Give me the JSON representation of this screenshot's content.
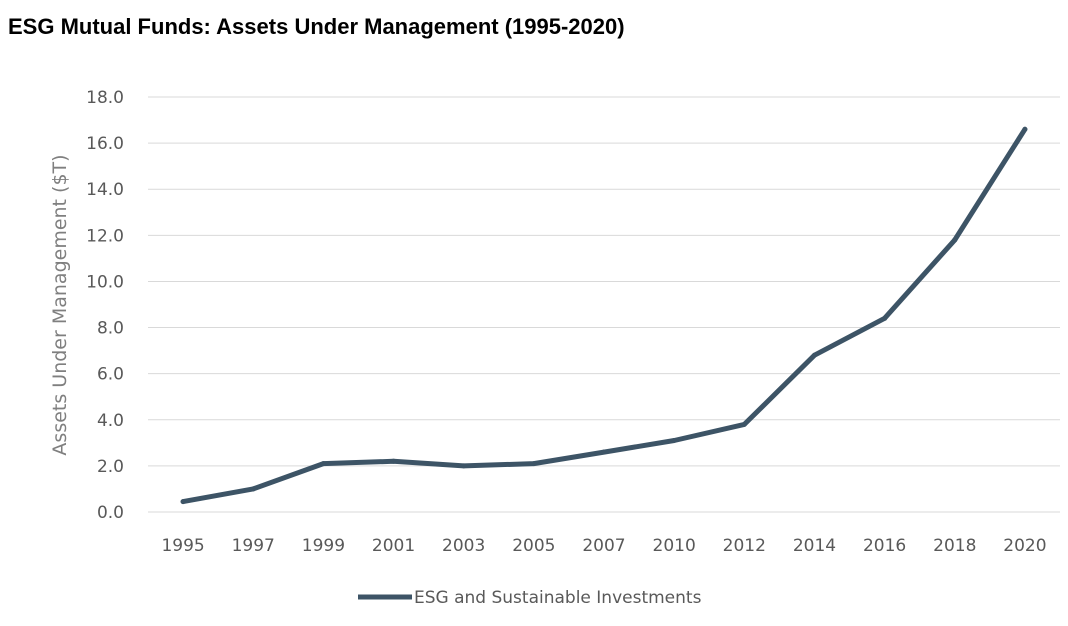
{
  "chart_data": {
    "type": "line",
    "title": "ESG Mutual Funds: Assets Under Management (1995-2020)",
    "xlabel": "",
    "ylabel": "Assets Under Management ($T)",
    "categories": [
      "1995",
      "1997",
      "1999",
      "2001",
      "2003",
      "2005",
      "2007",
      "2010",
      "2012",
      "2014",
      "2016",
      "2018",
      "2020"
    ],
    "series": [
      {
        "name": "ESG and Sustainable Investments",
        "values": [
          0.45,
          1.0,
          2.1,
          2.2,
          2.0,
          2.1,
          2.6,
          3.1,
          3.8,
          6.8,
          8.4,
          11.8,
          16.6
        ],
        "color": "#3d5466"
      }
    ],
    "ylim": [
      0,
      18
    ],
    "yticks": [
      "0.0",
      "2.0",
      "4.0",
      "6.0",
      "8.0",
      "10.0",
      "12.0",
      "14.0",
      "16.0",
      "18.0"
    ],
    "grid": true,
    "legend": "bottom-center"
  }
}
